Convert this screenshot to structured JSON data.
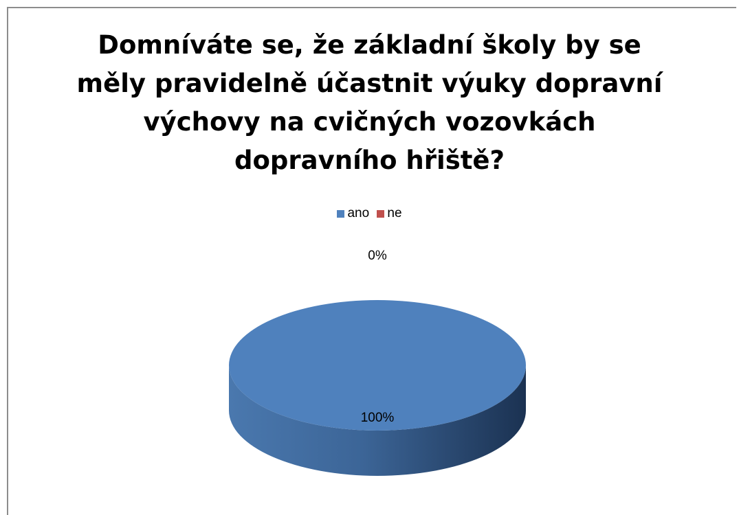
{
  "chart_data": {
    "type": "pie",
    "title": "Domníváte se, že základní školy by se měly pravidelně účastnit výuky dopravní výchovy na cvičných vozovkách dopravního hřiště?",
    "title_lines": [
      "Domníváte se, že základní školy by se",
      "měly pravidelně účastnit výuky dopravní",
      "výchovy na cvičných vozovkách",
      "dopravního hřiště?"
    ],
    "categories": [
      "ano",
      "ne"
    ],
    "values": [
      100,
      0
    ],
    "data_labels": [
      "100%",
      "0%"
    ],
    "colors": [
      "#4f81bd",
      "#c0504d"
    ],
    "legend_position": "top",
    "style": "3d"
  }
}
